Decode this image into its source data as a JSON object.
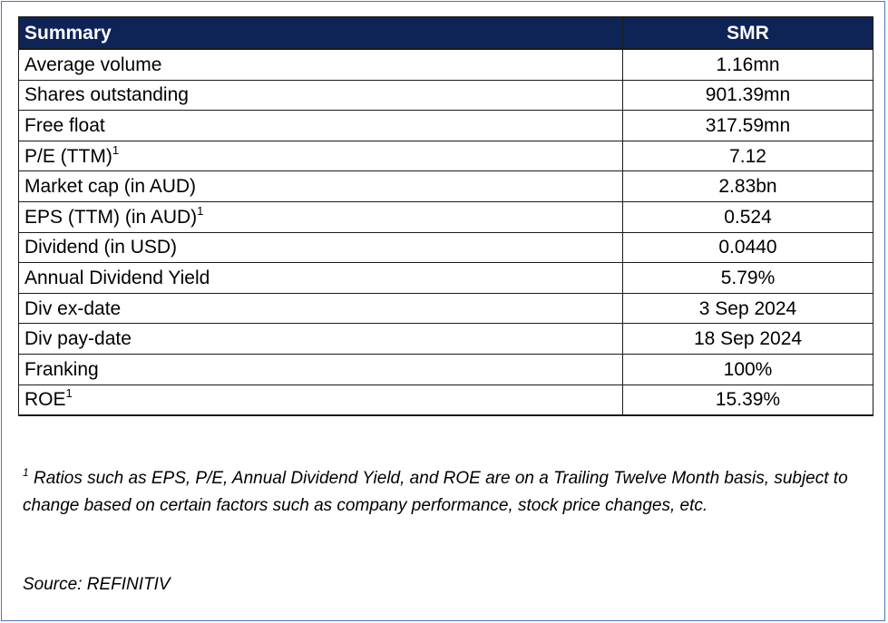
{
  "table": {
    "header": {
      "label": "Summary",
      "value": "SMR"
    },
    "rows": [
      {
        "label": "Average volume",
        "sup": "",
        "value": "1.16mn"
      },
      {
        "label": "Shares outstanding",
        "sup": "",
        "value": "901.39mn"
      },
      {
        "label": "Free float",
        "sup": "",
        "value": "317.59mn"
      },
      {
        "label": "P/E (TTM)",
        "sup": "1",
        "value": "7.12"
      },
      {
        "label": "Market cap (in AUD)",
        "sup": "",
        "value": "2.83bn"
      },
      {
        "label": "EPS (TTM) (in AUD)",
        "sup": "1",
        "value": "0.524"
      },
      {
        "label": "Dividend (in USD)",
        "sup": "",
        "value": "0.0440"
      },
      {
        "label": "Annual Dividend Yield",
        "sup": "",
        "value": "5.79%"
      },
      {
        "label": "Div ex-date",
        "sup": "",
        "value": "3 Sep 2024"
      },
      {
        "label": "Div pay-date",
        "sup": "",
        "value": "18 Sep 2024"
      },
      {
        "label": "Franking",
        "sup": "",
        "value": "100%"
      },
      {
        "label": "ROE",
        "sup": "1",
        "value": "15.39%"
      }
    ]
  },
  "footnote": {
    "marker": "1",
    "text": " Ratios such as EPS, P/E, Annual Dividend Yield, and ROE are on a Trailing Twelve Month basis, subject to change based on certain factors such as company performance, stock price changes, etc."
  },
  "source": "Source: REFINITIV",
  "colors": {
    "header_bg": "#0f2456",
    "header_text": "#ffffff",
    "frame_border": "#4a78b8"
  }
}
